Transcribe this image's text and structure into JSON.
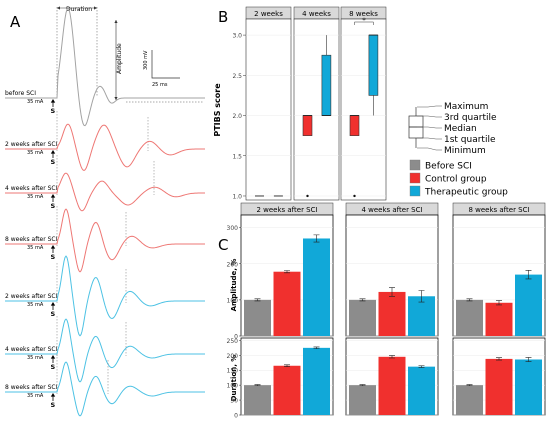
{
  "colors": {
    "before": "#8c8c8c",
    "control": "#f0302e",
    "therapeutic": "#11a8d8",
    "trace_before": "#a3a3a3",
    "trace_control": "#ee7774",
    "trace_therapeutic": "#4dc2e4",
    "facet_strip": "#d9d9d9",
    "grid": "#ebebeb"
  },
  "panels": {
    "A": {
      "label": "A",
      "duration_label": "Duration",
      "amplitude_label": "Amplitude",
      "scale_voltage": "300 mV",
      "scale_time": "25 ms",
      "stim_mark": "S",
      "traces": [
        {
          "label": "before SCI",
          "stim": "35 mA",
          "group": "before"
        },
        {
          "label": "2 weeks after SCI",
          "stim": "35 mA",
          "group": "control"
        },
        {
          "label": "4 weeks after SCI",
          "stim": "35 mA",
          "group": "control"
        },
        {
          "label": "8 weeks after SCI",
          "stim": "35 mA",
          "group": "control"
        },
        {
          "label": "2 weeks after SCI",
          "stim": "35 mA",
          "group": "therapeutic"
        },
        {
          "label": "4 weeks after SCI",
          "stim": "35 mA",
          "group": "therapeutic"
        },
        {
          "label": "8 weeks after SCI",
          "stim": "35 mA",
          "group": "therapeutic"
        }
      ]
    },
    "B": {
      "label": "B"
    },
    "C": {
      "label": "C"
    }
  },
  "legend": {
    "box_items": [
      "Maximum",
      "3rd quartile",
      "Median",
      "1st quartile",
      "Minimum"
    ],
    "groups": [
      {
        "name": "Before SCI",
        "color": "#8c8c8c"
      },
      {
        "name": "Control group",
        "color": "#f0302e"
      },
      {
        "name": "Therapeutic group",
        "color": "#11a8d8"
      }
    ]
  },
  "chart_data": [
    {
      "type": "box",
      "panel": "B",
      "ylabel": "PTIBS score",
      "ylim": [
        0.95,
        3.2
      ],
      "yticks": [
        "1.0",
        "1.5",
        "2.0",
        "2.5",
        "3.0"
      ],
      "facets": [
        "2 weeks",
        "4 weeks",
        "8 weeks"
      ],
      "significance_mark": "*",
      "boxes": [
        {
          "facet": "2 weeks",
          "group": "Before SCI",
          "min": 1.0,
          "q1": 1.0,
          "median": 1.0,
          "q3": 1.0,
          "max": 1.0
        },
        {
          "facet": "2 weeks",
          "group": "Control group",
          "min": 1.0,
          "q1": 1.0,
          "median": 1.0,
          "q3": 1.0,
          "max": 1.0
        },
        {
          "facet": "4 weeks",
          "group": "Control group",
          "min": 1.75,
          "q1": 1.75,
          "median": 2.0,
          "q3": 2.0,
          "max": 2.0,
          "outliers": [
            1.0
          ]
        },
        {
          "facet": "4 weeks",
          "group": "Therapeutic group",
          "min": 2.0,
          "q1": 2.0,
          "median": 2.0,
          "q3": 2.75,
          "max": 3.0
        },
        {
          "facet": "8 weeks",
          "group": "Control group",
          "min": 1.75,
          "q1": 1.75,
          "median": 2.0,
          "q3": 2.0,
          "max": 2.0,
          "outliers": [
            1.0
          ]
        },
        {
          "facet": "8 weeks",
          "group": "Therapeutic group",
          "min": 2.0,
          "q1": 2.25,
          "median": 3.0,
          "q3": 3.0,
          "max": 3.0
        }
      ]
    },
    {
      "type": "bar",
      "panel": "C",
      "facets": [
        "2 weeks after SCI",
        "4 weeks after SCI",
        "8 weeks after SCI"
      ],
      "categories": [
        "Before SCI",
        "Control group",
        "Therapeutic group"
      ],
      "rows": [
        {
          "ylabel": "Amplitude, %",
          "ylim": [
            0,
            335
          ],
          "yticks": [
            0,
            100,
            200,
            300
          ],
          "values": [
            [
              100,
              178,
              270
            ],
            [
              100,
              122,
              110
            ],
            [
              100,
              92,
              170
            ]
          ],
          "errors": [
            [
              3,
              3,
              10
            ],
            [
              3,
              12,
              16
            ],
            [
              3,
              6,
              12
            ]
          ]
        },
        {
          "ylabel": "Duration, %",
          "ylim": [
            0,
            258
          ],
          "yticks": [
            0,
            50,
            100,
            150,
            200,
            250
          ],
          "values": [
            [
              100,
              165,
              225
            ],
            [
              100,
              195,
              162
            ],
            [
              100,
              188,
              186
            ]
          ],
          "errors": [
            [
              2,
              3,
              3
            ],
            [
              2,
              4,
              3
            ],
            [
              2,
              4,
              7
            ]
          ]
        }
      ]
    }
  ]
}
